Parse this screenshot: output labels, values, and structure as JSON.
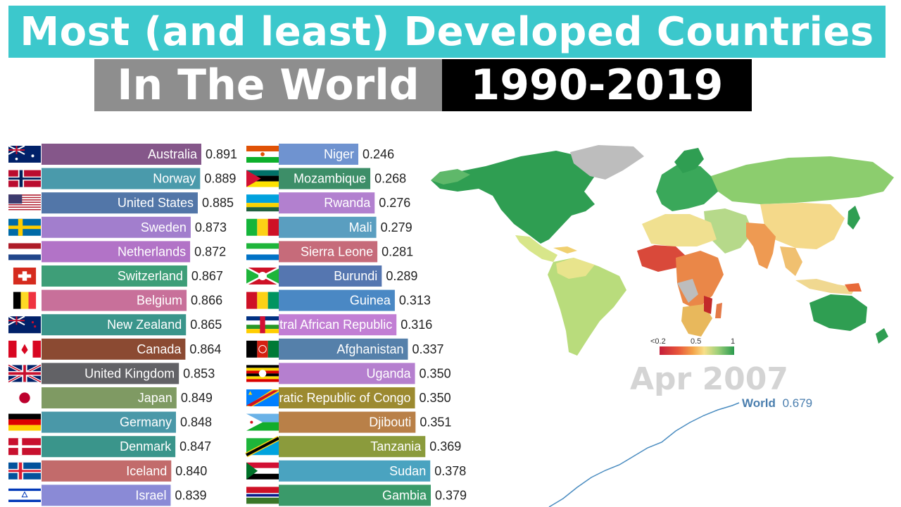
{
  "title": {
    "line1": "Most (and least) Developed Countries",
    "line2a": "In The World",
    "line2b": "1990-2019"
  },
  "date": "Apr 2007",
  "legend": {
    "min_label": "<0.2",
    "mid_label": "0.5",
    "max_label": "1"
  },
  "chart_data": [
    {
      "type": "bar",
      "categories": [
        "Australia",
        "Norway",
        "United States",
        "Sweden",
        "Netherlands",
        "Switzerland",
        "Belgium",
        "New Zealand",
        "Canada",
        "United Kingdom",
        "Japan",
        "Germany",
        "Denmark",
        "Iceland",
        "Israel"
      ],
      "values": [
        0.891,
        0.889,
        0.885,
        0.873,
        0.872,
        0.867,
        0.866,
        0.865,
        0.864,
        0.853,
        0.849,
        0.848,
        0.847,
        0.84,
        0.839
      ],
      "value_labels": [
        "0.891",
        "0.889",
        "0.885",
        "0.873",
        "0.872",
        "0.867",
        "0.866",
        "0.865",
        "0.864",
        "0.853",
        "0.849",
        "0.848",
        "0.847",
        "0.840",
        "0.839"
      ],
      "colors": [
        "#85578a",
        "#4a9aab",
        "#5276a8",
        "#a27ecd",
        "#b273c7",
        "#3e9e78",
        "#c8709a",
        "#3a958b",
        "#8b4a32",
        "#626266",
        "#7f9a63",
        "#4a98a8",
        "#3a958b",
        "#c26b6b",
        "#8a8ad6"
      ],
      "flags": [
        "australia-flag",
        "norway-flag",
        "united-states-flag",
        "sweden-flag",
        "netherlands-flag",
        "switzerland-flag",
        "belgium-flag",
        "new-zealand-flag",
        "canada-flag",
        "united-kingdom-flag",
        "japan-flag",
        "germany-flag",
        "denmark-flag",
        "iceland-flag",
        "israel-flag"
      ]
    },
    {
      "type": "bar",
      "categories": [
        "Niger",
        "Mozambique",
        "Rwanda",
        "Mali",
        "Sierra Leone",
        "Burundi",
        "Guinea",
        "Central African Republic",
        "Afghanistan",
        "Uganda",
        "Democratic Republic of Congo",
        "Djibouti",
        "Tanzania",
        "Sudan",
        "Gambia"
      ],
      "display_labels": [
        "Niger",
        "Mozambique",
        "Rwanda",
        "Mali",
        "Sierra Leone",
        "Burundi",
        "Guinea",
        "ntral African Republic",
        "Afghanistan",
        "Uganda",
        "cratic Republic of Congo",
        "Djibouti",
        "Tanzania",
        "Sudan",
        "Gambia"
      ],
      "values": [
        0.246,
        0.268,
        0.276,
        0.279,
        0.281,
        0.289,
        0.313,
        0.316,
        0.337,
        0.35,
        0.35,
        0.351,
        0.369,
        0.378,
        0.379
      ],
      "value_labels": [
        "0.246",
        "0.268",
        "0.276",
        "0.279",
        "0.281",
        "0.289",
        "0.313",
        "0.316",
        "0.337",
        "0.350",
        "0.350",
        "0.351",
        "0.369",
        "0.378",
        "0.379"
      ],
      "colors": [
        "#6f93d0",
        "#3d8e68",
        "#b280cf",
        "#5a9ec0",
        "#c66b7a",
        "#5576b0",
        "#4a88c4",
        "#c27ed4",
        "#5580aa",
        "#b57fcf",
        "#9c8a30",
        "#b98048",
        "#8b9b3c",
        "#4aa3c0",
        "#3a9a6a"
      ],
      "flags": [
        "niger-flag",
        "mozambique-flag",
        "rwanda-flag",
        "mali-flag",
        "sierra-leone-flag",
        "burundi-flag",
        "guinea-flag",
        "central-african-republic-flag",
        "afghanistan-flag",
        "uganda-flag",
        "drc-flag",
        "djibouti-flag",
        "tanzania-flag",
        "sudan-flag",
        "gambia-flag"
      ]
    },
    {
      "type": "line",
      "series": [
        {
          "name": "World",
          "value_label": "0.679"
        }
      ],
      "color": "#4a8cc0"
    }
  ]
}
